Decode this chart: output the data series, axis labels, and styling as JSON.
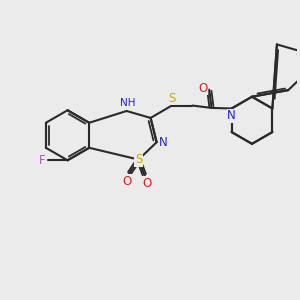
{
  "bg_color": "#ebebeb",
  "bond_color": "#2a2a2a",
  "atom_colors": {
    "F": "#cc44cc",
    "S": "#ccaa00",
    "N": "#2020dd",
    "O": "#dd2020",
    "H": "#888888"
  },
  "figsize": [
    3.0,
    3.0
  ],
  "dpi": 100
}
